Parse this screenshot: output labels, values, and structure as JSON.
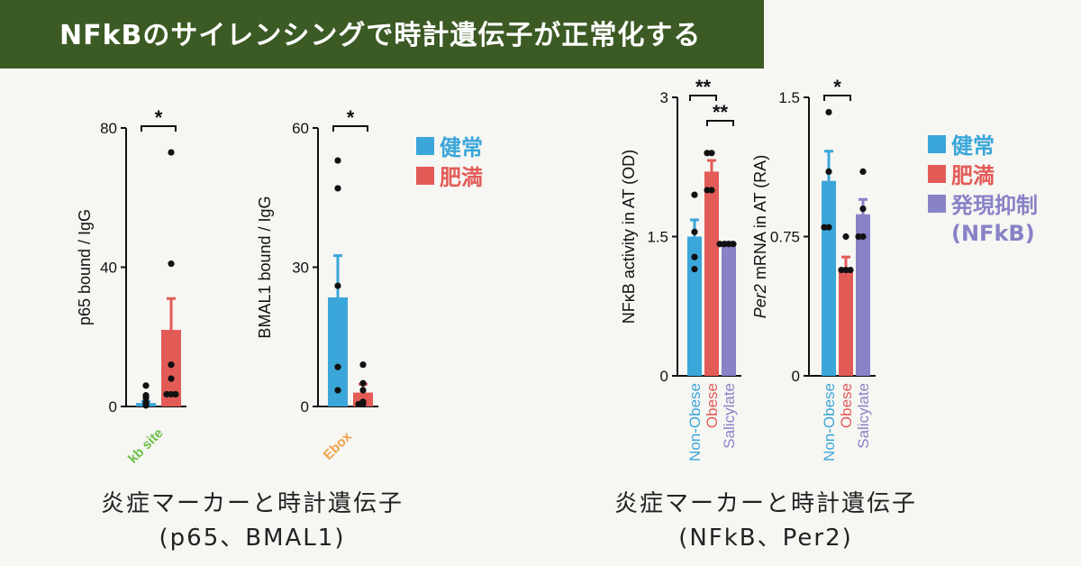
{
  "title": "NFkBのサイレンシングで時計遺伝子が正常化する",
  "colors": {
    "banner": "#3c5a24",
    "healthy": "#3aa6d9",
    "obese": "#e35b57",
    "suppressed": "#8882c6",
    "kb_label": "#6cc04a",
    "ebox_label": "#f0a24a"
  },
  "legend_left": [
    {
      "label": "健常",
      "color": "#3aa6d9"
    },
    {
      "label": "肥満",
      "color": "#e35b57"
    }
  ],
  "legend_right": [
    {
      "label": "健常",
      "color": "#3aa6d9"
    },
    {
      "label": "肥満",
      "color": "#e35b57"
    },
    {
      "label": "発現抑制",
      "sub": "(NFkB)",
      "color": "#8882c6"
    }
  ],
  "caption_left": {
    "line1": "炎症マーカーと時計遺伝子",
    "line2": "(p65、BMAL1)"
  },
  "caption_right": {
    "line1": "炎症マーカーと時計遺伝子",
    "line2": "(NFkB、Per2)"
  },
  "chart_data": [
    {
      "type": "bar",
      "ylabel": "p65 bound / IgG",
      "xlabel": "kb site",
      "ylim": [
        0,
        80
      ],
      "yticks": [
        "0",
        "40",
        "80"
      ],
      "significance": [
        {
          "label": "*",
          "from": 0,
          "to": 1
        }
      ],
      "bars": [
        {
          "group": "健常",
          "value": 1,
          "error": 0.5,
          "color": "#3aa6d9",
          "points": [
            0.3,
            0.8,
            1.2,
            2.5,
            3.2,
            6
          ]
        },
        {
          "group": "肥満",
          "value": 22,
          "error": 9,
          "color": "#e35b57",
          "points": [
            3.5,
            3.5,
            3.5,
            8,
            12,
            41,
            73
          ]
        }
      ]
    },
    {
      "type": "bar",
      "ylabel": "BMAL1 bound / IgG",
      "xlabel": "Ebox",
      "ylim": [
        0,
        60
      ],
      "yticks": [
        "0",
        "30",
        "60"
      ],
      "significance": [
        {
          "label": "*",
          "from": 0,
          "to": 1
        }
      ],
      "bars": [
        {
          "group": "健常",
          "value": 23.5,
          "error": 9,
          "color": "#3aa6d9",
          "points": [
            3.5,
            8.5,
            26,
            47,
            53
          ]
        },
        {
          "group": "肥満",
          "value": 3,
          "error": 1.8,
          "color": "#e35b57",
          "points": [
            0.5,
            0.5,
            1,
            3.5,
            5,
            9
          ]
        }
      ]
    },
    {
      "type": "bar",
      "ylabel": "NFκB activity in AT (OD)",
      "categories": [
        "Non-Obese",
        "Obese",
        "Salicylate"
      ],
      "ylim": [
        0,
        3
      ],
      "yticks": [
        "0",
        "1.5",
        "3"
      ],
      "significance": [
        {
          "label": "**",
          "from": 0,
          "to": 1
        },
        {
          "label": "**",
          "from": 1,
          "to": 2
        }
      ],
      "bars": [
        {
          "group": "Non-Obese",
          "value": 1.5,
          "error": 0.18,
          "color": "#3aa6d9",
          "points": [
            1.95,
            1.55,
            1.28,
            1.15
          ]
        },
        {
          "group": "Obese",
          "value": 2.2,
          "error": 0.12,
          "color": "#e35b57",
          "points": [
            2.4,
            2.4,
            2.0,
            2.0
          ]
        },
        {
          "group": "Salicylate",
          "value": 1.42,
          "error": 0.02,
          "color": "#8882c6",
          "points": [
            1.42,
            1.42,
            1.42,
            1.42
          ]
        }
      ]
    },
    {
      "type": "bar",
      "ylabel": "Per2 mRNA in AT (RA)",
      "ylabel_italic": "Per2",
      "ylabel_rest": " mRNA in AT (RA)",
      "categories": [
        "Non-Obese",
        "Obese",
        "Salicylate"
      ],
      "ylim": [
        0,
        1.5
      ],
      "yticks": [
        "0",
        "0.75",
        "1.5"
      ],
      "significance": [
        {
          "label": "*",
          "from": 0,
          "to": 1
        }
      ],
      "bars": [
        {
          "group": "Non-Obese",
          "value": 1.05,
          "error": 0.16,
          "color": "#3aa6d9",
          "points": [
            1.42,
            1.1,
            0.8,
            0.8
          ]
        },
        {
          "group": "Obese",
          "value": 0.57,
          "error": 0.07,
          "color": "#e35b57",
          "points": [
            0.75,
            0.57,
            0.57,
            0.57
          ]
        },
        {
          "group": "Salicylate",
          "value": 0.87,
          "error": 0.08,
          "color": "#8882c6",
          "points": [
            1.1,
            0.9,
            0.75,
            0.75
          ]
        }
      ]
    }
  ]
}
